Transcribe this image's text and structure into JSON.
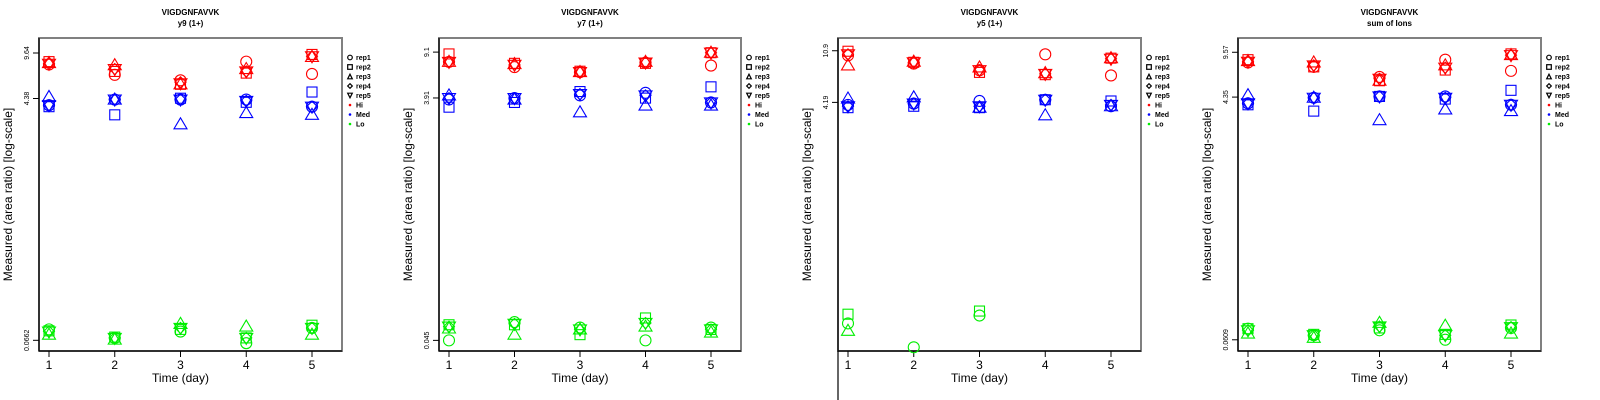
{
  "colors": {
    "Hi": "#ff0000",
    "Med": "#0000ff",
    "Lo": "#00ee00"
  },
  "legend": {
    "reps": [
      {
        "label": "rep1",
        "shape": "circle"
      },
      {
        "label": "rep2",
        "shape": "square"
      },
      {
        "label": "rep3",
        "shape": "triangle-up"
      },
      {
        "label": "rep4",
        "shape": "diamond"
      },
      {
        "label": "rep5",
        "shape": "triangle-down"
      }
    ],
    "levels": [
      {
        "label": "Hi",
        "color": "#ff0000"
      },
      {
        "label": "Med",
        "color": "#0000ff"
      },
      {
        "label": "Lo",
        "color": "#00ee00"
      }
    ]
  },
  "chart_data": [
    {
      "type": "scatter",
      "title": "VIGDGNFAVVK",
      "subtitle": "y9 (1+)",
      "xlabel": "Time (day)",
      "ylabel": "Measured (area ratio) [log-scale]",
      "x_ticks": [
        "1",
        "2",
        "3",
        "4",
        "5"
      ],
      "y_ticks": [
        "9.64",
        "4.38",
        "0.0662"
      ],
      "y_tick_values": [
        9.64,
        4.38,
        0.0662
      ],
      "ylim": [
        0.055,
        12.5
      ],
      "show_bottom_tick": true,
      "series": [
        {
          "level": "Hi",
          "rep": "rep1",
          "values": [
            7.9,
            6.6,
            6.0,
            8.3,
            6.7
          ]
        },
        {
          "level": "Hi",
          "rep": "rep2",
          "values": [
            8.3,
            7.0,
            5.6,
            6.8,
            9.4
          ]
        },
        {
          "level": "Hi",
          "rep": "rep3",
          "values": [
            8.1,
            7.8,
            5.6,
            7.3,
            9.0
          ]
        },
        {
          "level": "Hi",
          "rep": "rep4",
          "values": [
            8.0,
            7.3,
            5.8,
            7.0,
            9.1
          ]
        },
        {
          "level": "Hi",
          "rep": "rep5",
          "values": [
            8.0,
            7.3,
            5.7,
            7.0,
            9.1
          ]
        },
        {
          "level": "Med",
          "rep": "rep1",
          "values": [
            3.9,
            4.3,
            4.3,
            4.3,
            3.8
          ]
        },
        {
          "level": "Med",
          "rep": "rep2",
          "values": [
            3.8,
            3.3,
            4.4,
            4.1,
            4.9
          ]
        },
        {
          "level": "Med",
          "rep": "rep3",
          "values": [
            4.5,
            4.3,
            2.8,
            3.4,
            3.3
          ]
        },
        {
          "level": "Med",
          "rep": "rep4",
          "values": [
            3.9,
            4.3,
            4.3,
            4.2,
            3.8
          ]
        },
        {
          "level": "Med",
          "rep": "rep5",
          "values": [
            3.9,
            4.3,
            4.3,
            4.2,
            3.8
          ]
        },
        {
          "level": "Lo",
          "rep": "rep1",
          "values": [
            0.08,
            0.069,
            0.077,
            0.063,
            0.082
          ]
        },
        {
          "level": "Lo",
          "rep": "rep2",
          "values": [
            0.078,
            0.07,
            0.08,
            0.069,
            0.086
          ]
        },
        {
          "level": "Lo",
          "rep": "rep3",
          "values": [
            0.073,
            0.067,
            0.088,
            0.084,
            0.073
          ]
        },
        {
          "level": "Lo",
          "rep": "rep4",
          "values": [
            0.077,
            0.069,
            0.082,
            0.069,
            0.082
          ]
        },
        {
          "level": "Lo",
          "rep": "rep5",
          "values": [
            0.077,
            0.069,
            0.082,
            0.069,
            0.082
          ]
        }
      ]
    },
    {
      "type": "scatter",
      "title": "VIGDGNFAVVK",
      "subtitle": "y7 (1+)",
      "xlabel": "Time (day)",
      "ylabel": "Measured (area ratio) [log-scale]",
      "x_ticks": [
        "1",
        "2",
        "3",
        "4",
        "5"
      ],
      "y_ticks": [
        "9.1",
        "3.91",
        "0.045"
      ],
      "y_tick_values": [
        9.1,
        3.91,
        0.045
      ],
      "ylim": [
        0.037,
        11.8
      ],
      "show_bottom_tick": true,
      "series": [
        {
          "level": "Hi",
          "rep": "rep1",
          "values": [
            7.6,
            6.9,
            6.3,
            7.5,
            7.1
          ]
        },
        {
          "level": "Hi",
          "rep": "rep2",
          "values": [
            8.8,
            7.4,
            6.4,
            7.4,
            9.0
          ]
        },
        {
          "level": "Hi",
          "rep": "rep3",
          "values": [
            7.6,
            7.3,
            6.3,
            7.6,
            9.0
          ]
        },
        {
          "level": "Hi",
          "rep": "rep4",
          "values": [
            7.6,
            7.2,
            6.3,
            7.5,
            9.0
          ]
        },
        {
          "level": "Hi",
          "rep": "rep5",
          "values": [
            7.6,
            7.2,
            6.3,
            7.5,
            9.0
          ]
        },
        {
          "level": "Med",
          "rep": "rep1",
          "values": [
            3.8,
            3.9,
            4.1,
            4.3,
            3.6
          ]
        },
        {
          "level": "Med",
          "rep": "rep2",
          "values": [
            3.3,
            3.6,
            4.4,
            3.9,
            4.8
          ]
        },
        {
          "level": "Med",
          "rep": "rep3",
          "values": [
            4.1,
            3.8,
            3.0,
            3.4,
            3.4
          ]
        },
        {
          "level": "Med",
          "rep": "rep4",
          "values": [
            3.9,
            3.9,
            4.2,
            4.1,
            3.6
          ]
        },
        {
          "level": "Med",
          "rep": "rep5",
          "values": [
            3.9,
            3.9,
            4.2,
            4.1,
            3.6
          ]
        },
        {
          "level": "Lo",
          "rep": "rep1",
          "values": [
            0.045,
            0.063,
            0.057,
            0.045,
            0.057
          ]
        },
        {
          "level": "Lo",
          "rep": "rep2",
          "values": [
            0.06,
            0.06,
            0.05,
            0.068,
            0.055
          ]
        },
        {
          "level": "Lo",
          "rep": "rep3",
          "values": [
            0.056,
            0.05,
            0.055,
            0.058,
            0.052
          ]
        },
        {
          "level": "Lo",
          "rep": "rep4",
          "values": [
            0.058,
            0.061,
            0.055,
            0.062,
            0.055
          ]
        },
        {
          "level": "Lo",
          "rep": "rep5",
          "values": [
            0.058,
            0.061,
            0.055,
            0.062,
            0.055
          ]
        }
      ]
    },
    {
      "type": "scatter",
      "title": "VIGDGNFAVVK",
      "subtitle": "y5 (1+)",
      "xlabel": "Time (day)",
      "ylabel": "Measured (area ratio) [log-scale]",
      "x_ticks": [
        "1",
        "2",
        "3",
        "4",
        "5"
      ],
      "y_ticks": [
        "10.9",
        "4.19"
      ],
      "y_tick_values": [
        10.9,
        4.19
      ],
      "ylim": [
        0.042,
        13.8
      ],
      "show_bottom_tick": false,
      "series": [
        {
          "level": "Hi",
          "rep": "rep1",
          "values": [
            10.0,
            8.6,
            7.6,
            10.2,
            6.9
          ]
        },
        {
          "level": "Hi",
          "rep": "rep2",
          "values": [
            10.8,
            8.8,
            7.3,
            7.0,
            9.5
          ]
        },
        {
          "level": "Hi",
          "rep": "rep3",
          "values": [
            8.3,
            8.9,
            8.0,
            7.2,
            9.5
          ]
        },
        {
          "level": "Hi",
          "rep": "rep4",
          "values": [
            10.2,
            8.8,
            7.6,
            7.1,
            9.4
          ]
        },
        {
          "level": "Hi",
          "rep": "rep5",
          "values": [
            10.2,
            8.8,
            7.6,
            7.1,
            9.4
          ]
        },
        {
          "level": "Med",
          "rep": "rep1",
          "values": [
            4.0,
            4.1,
            4.3,
            4.4,
            3.9
          ]
        },
        {
          "level": "Med",
          "rep": "rep2",
          "values": [
            3.8,
            3.9,
            3.8,
            4.4,
            4.3
          ]
        },
        {
          "level": "Med",
          "rep": "rep3",
          "values": [
            4.5,
            4.6,
            3.8,
            3.3,
            3.9
          ]
        },
        {
          "level": "Med",
          "rep": "rep4",
          "values": [
            3.9,
            4.1,
            3.9,
            4.4,
            4.0
          ]
        },
        {
          "level": "Med",
          "rep": "rep5",
          "values": [
            3.9,
            4.1,
            3.9,
            4.4,
            4.0
          ]
        },
        {
          "level": "Lo",
          "rep": "rep1",
          "values": [
            0.07,
            0.045,
            0.081,
            null,
            null
          ]
        },
        {
          "level": "Lo",
          "rep": "rep2",
          "values": [
            0.083,
            null,
            0.088,
            null,
            null
          ]
        },
        {
          "level": "Lo",
          "rep": "rep3",
          "values": [
            0.061,
            null,
            null,
            null,
            null
          ]
        },
        {
          "level": "Lo",
          "rep": "rep4",
          "values": [
            null,
            null,
            null,
            null,
            null
          ]
        },
        {
          "level": "Lo",
          "rep": "rep5",
          "values": [
            null,
            null,
            null,
            null,
            null
          ]
        }
      ]
    },
    {
      "type": "scatter",
      "title": "VIGDGNFAVVK",
      "subtitle": "sum of Ions",
      "xlabel": "Time (day)",
      "ylabel": "Measured (area ratio) [log-scale]",
      "x_ticks": [
        "1",
        "2",
        "3",
        "4",
        "5"
      ],
      "y_ticks": [
        "9.57",
        "4.35",
        "0.0609"
      ],
      "y_tick_values": [
        9.57,
        4.35,
        0.0609
      ],
      "ylim": [
        0.05,
        12.3
      ],
      "show_bottom_tick": true,
      "series": [
        {
          "level": "Hi",
          "rep": "rep1",
          "values": [
            8.0,
            7.4,
            6.2,
            8.4,
            6.9
          ]
        },
        {
          "level": "Hi",
          "rep": "rep2",
          "values": [
            8.4,
            7.4,
            5.8,
            7.0,
            9.3
          ]
        },
        {
          "level": "Hi",
          "rep": "rep3",
          "values": [
            8.2,
            8.0,
            5.8,
            7.6,
            9.1
          ]
        },
        {
          "level": "Hi",
          "rep": "rep4",
          "values": [
            8.1,
            7.6,
            6.0,
            7.3,
            9.1
          ]
        },
        {
          "level": "Hi",
          "rep": "rep5",
          "values": [
            8.1,
            7.6,
            6.0,
            7.3,
            9.1
          ]
        },
        {
          "level": "Med",
          "rep": "rep1",
          "values": [
            3.9,
            4.3,
            4.4,
            4.4,
            3.8
          ]
        },
        {
          "level": "Med",
          "rep": "rep2",
          "values": [
            3.8,
            3.4,
            4.4,
            4.2,
            4.9
          ]
        },
        {
          "level": "Med",
          "rep": "rep3",
          "values": [
            4.5,
            4.3,
            2.9,
            3.5,
            3.4
          ]
        },
        {
          "level": "Med",
          "rep": "rep4",
          "values": [
            3.9,
            4.3,
            4.4,
            4.3,
            3.8
          ]
        },
        {
          "level": "Med",
          "rep": "rep5",
          "values": [
            3.9,
            4.3,
            4.4,
            4.3,
            3.8
          ]
        },
        {
          "level": "Lo",
          "rep": "rep1",
          "values": [
            0.074,
            0.066,
            0.072,
            0.061,
            0.075
          ]
        },
        {
          "level": "Lo",
          "rep": "rep2",
          "values": [
            0.074,
            0.067,
            0.075,
            0.067,
            0.079
          ]
        },
        {
          "level": "Lo",
          "rep": "rep3",
          "values": [
            0.068,
            0.063,
            0.082,
            0.078,
            0.068
          ]
        },
        {
          "level": "Lo",
          "rep": "rep4",
          "values": [
            0.072,
            0.066,
            0.077,
            0.066,
            0.076
          ]
        },
        {
          "level": "Lo",
          "rep": "rep5",
          "values": [
            0.072,
            0.066,
            0.077,
            0.066,
            0.076
          ]
        }
      ]
    }
  ]
}
